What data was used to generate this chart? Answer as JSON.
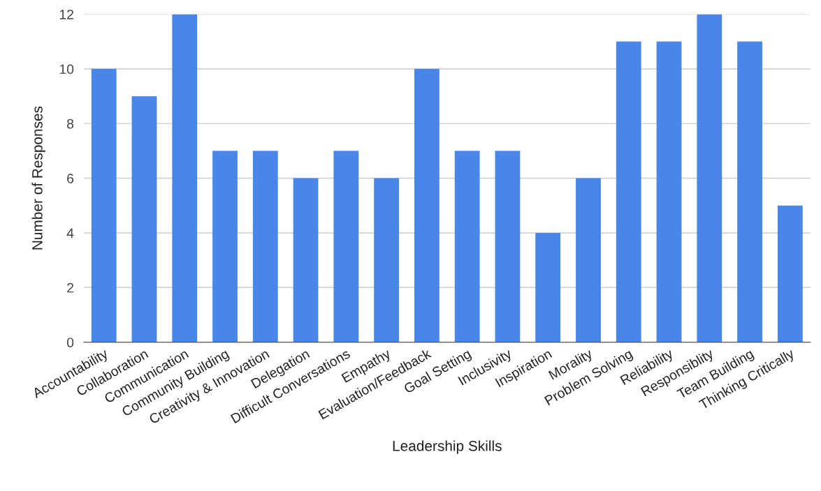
{
  "chart_data": {
    "type": "bar",
    "xlabel": "Leadership Skills",
    "ylabel": "Number of Responses",
    "categories": [
      "Accountability",
      "Collaboration",
      "Communication",
      "Community Building",
      "Creativity & Innovation",
      "Delegation",
      "Difficult Conversations",
      "Empathy",
      "Evaluation/Feedback",
      "Goal Setting",
      "Inclusivity",
      "Inspiration",
      "Morality",
      "Problem Solving",
      "Reliability",
      "Responsiblity",
      "Team Building",
      "Thinking Critically"
    ],
    "values": [
      10,
      9,
      12,
      7,
      7,
      6,
      7,
      6,
      10,
      7,
      7,
      4,
      6,
      11,
      11,
      12,
      11,
      5
    ],
    "color": "#4a86e8",
    "ylim": [
      0,
      12
    ],
    "yticks": [
      0,
      2,
      4,
      6,
      8,
      10,
      12
    ],
    "grid": "y"
  }
}
